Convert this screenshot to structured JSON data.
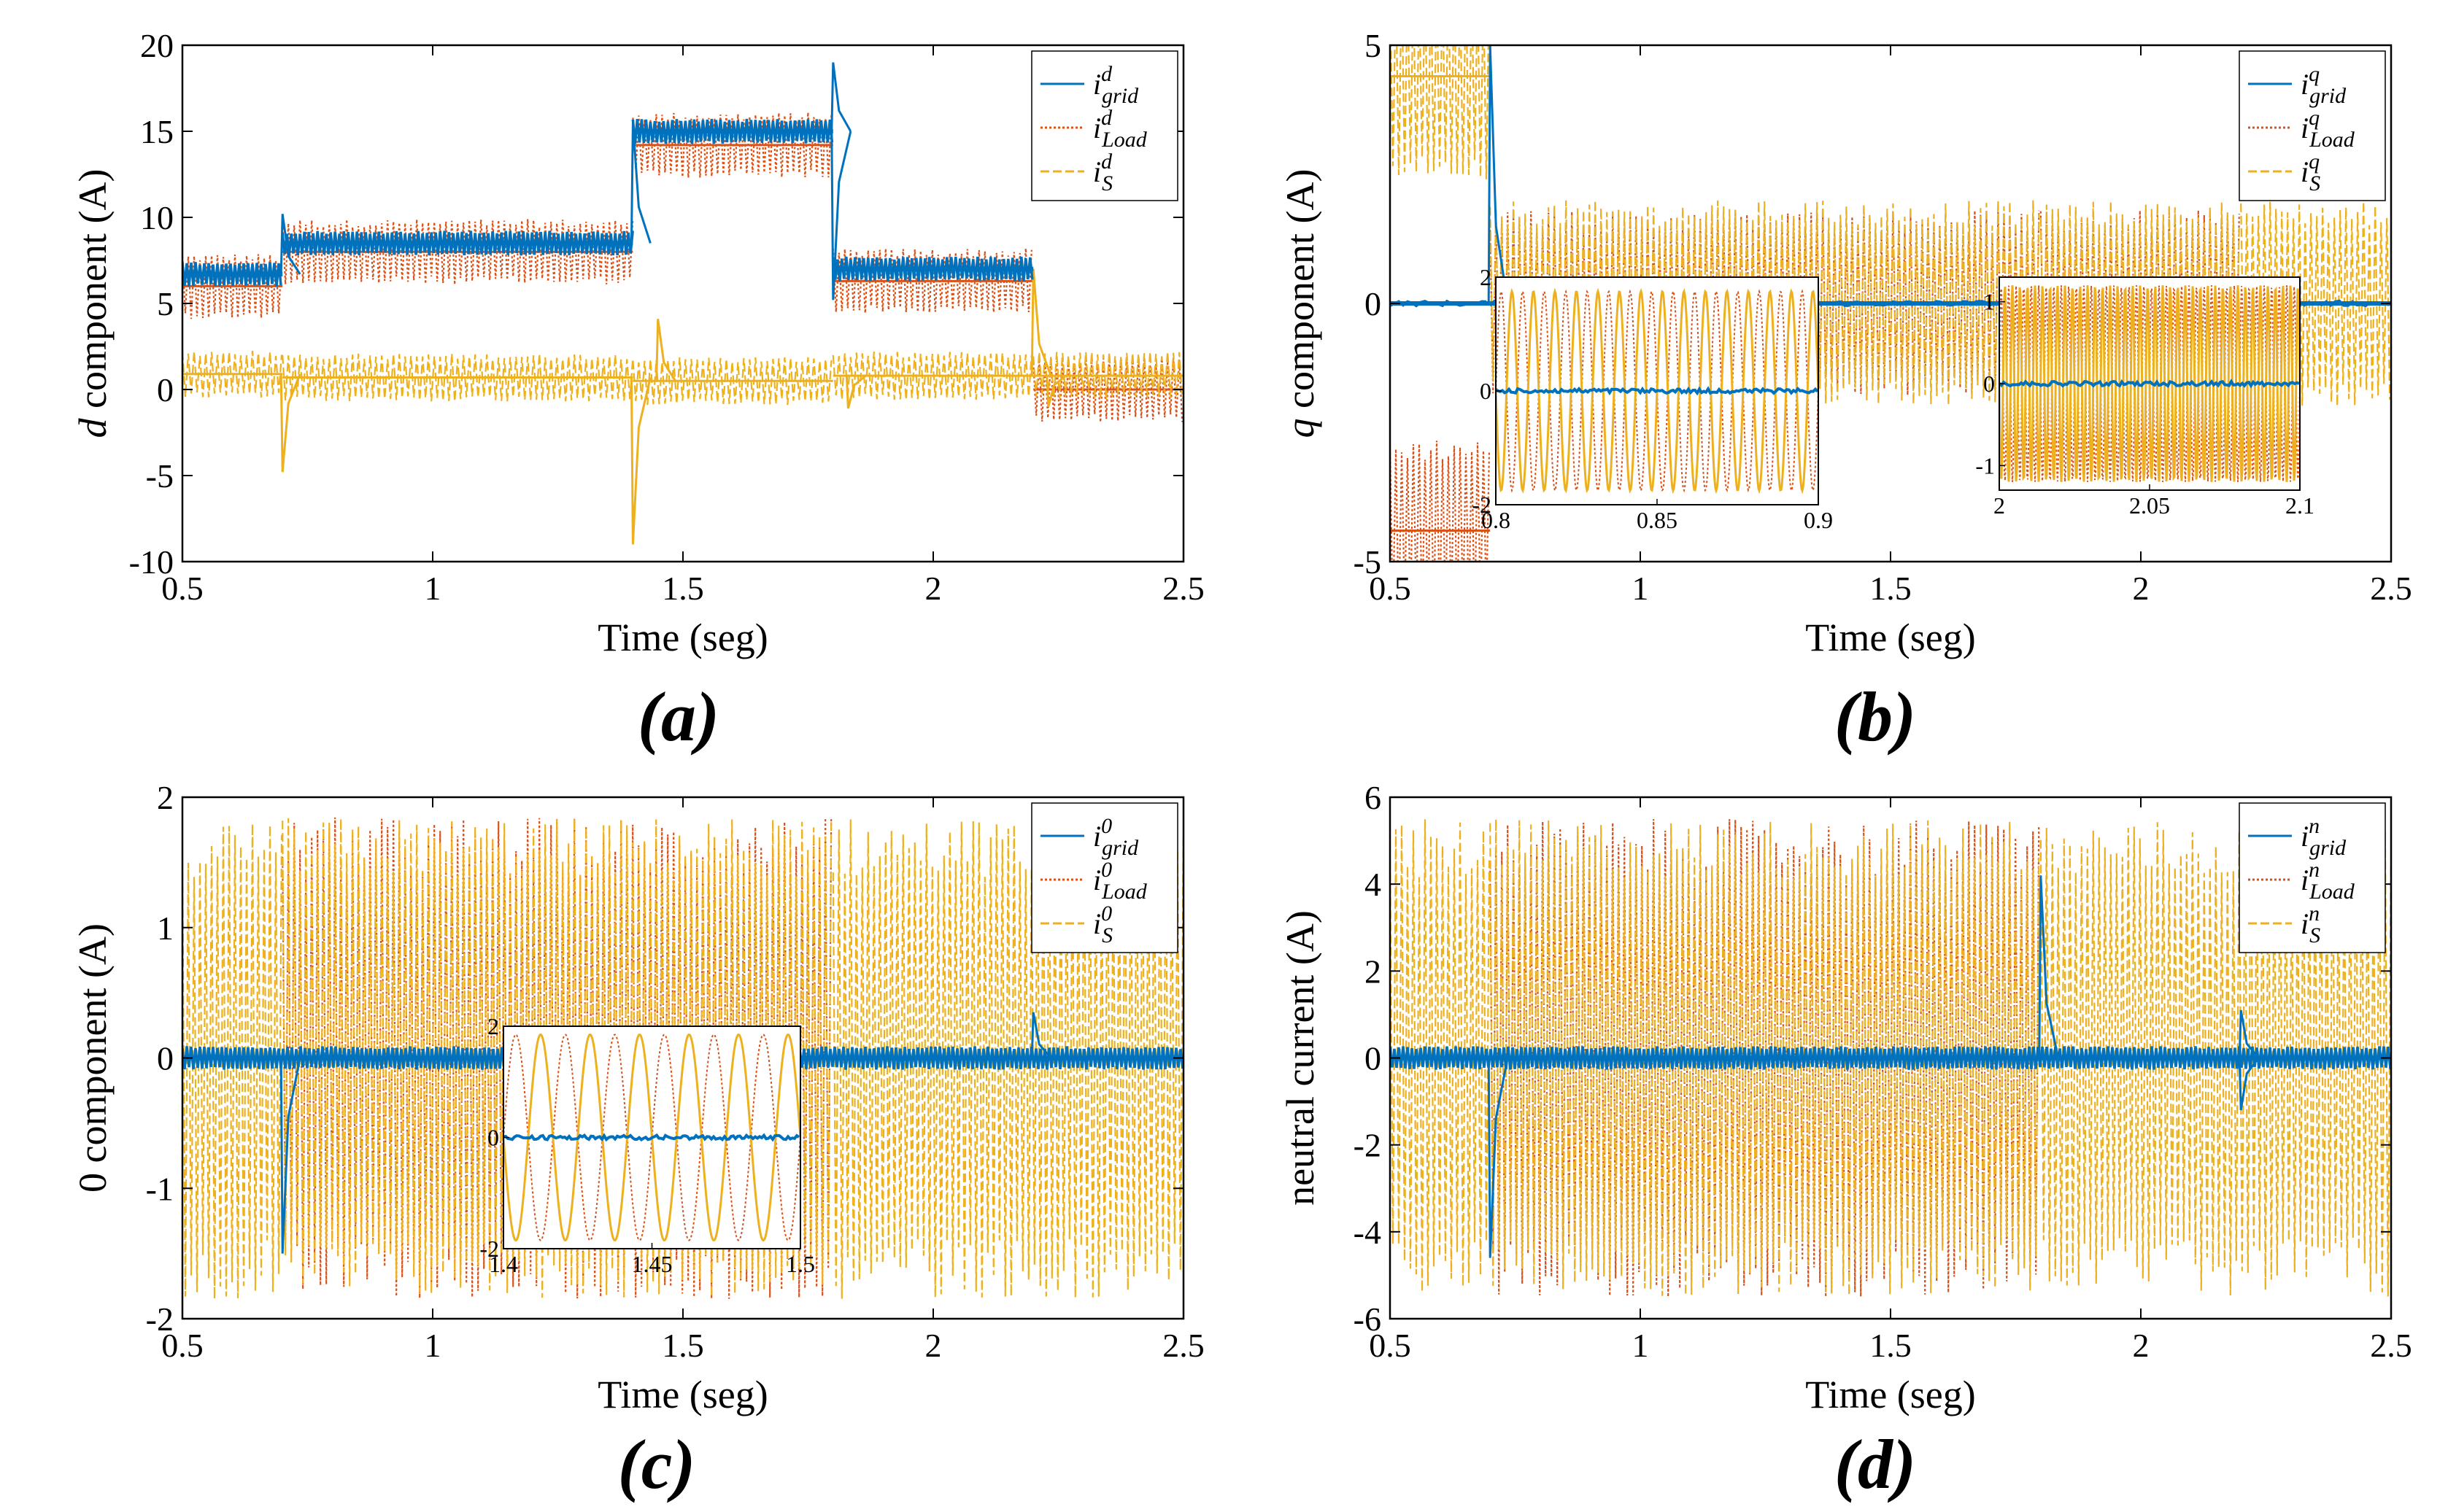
{
  "colors": {
    "grid": "#0072BD",
    "load": "#D95319",
    "source": "#EDB120"
  },
  "chart_data": [
    {
      "type": "line",
      "panel_label": "(a)",
      "xlabel": "Time (seg)",
      "ylabel_italic": "d",
      "ylabel_rest": " component (A)",
      "xlim": [
        0.5,
        2.5
      ],
      "ylim": [
        -10,
        20
      ],
      "xticks": [
        0.5,
        1,
        1.5,
        2,
        2.5
      ],
      "xtick_labels": [
        "0.5",
        "1",
        "1.5",
        "2",
        "2.5"
      ],
      "yticks": [
        -10,
        -5,
        0,
        5,
        10,
        15,
        20
      ],
      "ytick_labels": [
        "-10",
        "-5",
        "0",
        "5",
        "10",
        "15",
        "20"
      ],
      "legend": {
        "position": "top-right",
        "base": "i",
        "sup": "d",
        "subs": [
          "grid",
          "Load",
          "S"
        ]
      },
      "events": [
        0.7,
        1.4,
        1.8,
        2.2
      ],
      "series": [
        {
          "key": "grid",
          "style": "solid",
          "segments": [
            [
              0.5,
              0.7,
              6.7
            ],
            [
              0.7,
              1.4,
              8.5
            ],
            [
              1.4,
              1.8,
              15.0
            ],
            [
              1.8,
              2.2,
              7.0
            ]
          ],
          "ripple": 0.8,
          "spikes": [
            [
              0.7,
              10.2
            ],
            [
              1.4,
              15.5
            ],
            [
              1.8,
              19.0
            ],
            [
              1.8,
              5.2
            ]
          ]
        },
        {
          "key": "load",
          "style": "dotted",
          "segments": [
            [
              0.5,
              0.7,
              6.0
            ],
            [
              0.7,
              1.4,
              8.0
            ],
            [
              1.4,
              1.8,
              14.2
            ],
            [
              1.8,
              2.2,
              6.3
            ],
            [
              2.2,
              2.5,
              0
            ]
          ],
          "ripple": 1.9
        },
        {
          "key": "source",
          "style": "dashed",
          "segments": [
            [
              0.5,
              0.7,
              0.9
            ],
            [
              0.7,
              1.4,
              0.7
            ],
            [
              1.4,
              1.8,
              0.5
            ],
            [
              1.8,
              2.2,
              0.8
            ],
            [
              2.2,
              2.5,
              0.8
            ]
          ],
          "ripple": 1.4,
          "spikes": [
            [
              0.7,
              -4.8
            ],
            [
              1.4,
              -9.0
            ],
            [
              1.45,
              4.1
            ],
            [
              1.83,
              -1.1
            ],
            [
              2.2,
              7.0
            ],
            [
              2.23,
              -1.0
            ]
          ]
        }
      ]
    },
    {
      "type": "line",
      "panel_label": "(b)",
      "xlabel": "Time (seg)",
      "ylabel_italic": "q",
      "ylabel_rest": " component (A)",
      "xlim": [
        0.5,
        2.5
      ],
      "ylim": [
        -5,
        5
      ],
      "xticks": [
        0.5,
        1,
        1.5,
        2,
        2.5
      ],
      "xtick_labels": [
        "0.5",
        "1",
        "1.5",
        "2",
        "2.5"
      ],
      "yticks": [
        -5,
        0,
        5
      ],
      "ytick_labels": [
        "-5",
        "0",
        "5"
      ],
      "legend": {
        "position": "top-right",
        "base": "i",
        "sup": "q",
        "subs": [
          "grid",
          "Load",
          "S"
        ]
      },
      "events": [
        0.7,
        1.4,
        1.8,
        2.2
      ],
      "series": [
        {
          "key": "grid",
          "style": "solid",
          "segments": [
            [
              0.5,
              0.7,
              0
            ],
            [
              0.7,
              2.5,
              0
            ]
          ],
          "ripple": 0.05,
          "spikes": [
            [
              0.7,
              5.0
            ]
          ]
        },
        {
          "key": "load",
          "style": "dotted",
          "segments": [
            [
              0.5,
              0.7,
              -4.4
            ],
            [
              0.7,
              1.4,
              0
            ],
            [
              1.4,
              1.8,
              0
            ],
            [
              1.8,
              2.2,
              0
            ]
          ],
          "ripple": 1.8
        },
        {
          "key": "source",
          "style": "dashed",
          "segments": [
            [
              0.5,
              0.7,
              4.4
            ],
            [
              0.7,
              1.4,
              0
            ],
            [
              1.4,
              1.8,
              0
            ],
            [
              1.8,
              2.2,
              0
            ],
            [
              2.2,
              2.5,
              0
            ]
          ],
          "ripple": 2.0
        }
      ],
      "insets": [
        {
          "xlim": [
            0.8,
            0.9
          ],
          "ylim": [
            -2,
            2
          ],
          "xticks": [
            0.8,
            0.85,
            0.9
          ],
          "xtick_labels": [
            "0.8",
            "0.85",
            "0.9"
          ],
          "yticks": [
            -2,
            0,
            2
          ],
          "ytick_labels": [
            "-2",
            "0",
            "2"
          ],
          "amplitude": 1.75,
          "cycles": 15
        },
        {
          "xlim": [
            2,
            2.1
          ],
          "ylim": [
            -1.3,
            1.3
          ],
          "xticks": [
            2,
            2.05,
            2.1
          ],
          "xtick_labels": [
            "2",
            "2.05",
            "2.1"
          ],
          "yticks": [
            -1,
            0,
            1
          ],
          "ytick_labels": [
            "-1",
            "0",
            "1"
          ],
          "amplitude": 1.2,
          "cycles": 40
        }
      ]
    },
    {
      "type": "line",
      "panel_label": "(c)",
      "xlabel": "Time (seg)",
      "ylabel_italic": "",
      "ylabel_rest": "0 component (A)",
      "xlim": [
        0.5,
        2.5
      ],
      "ylim": [
        -2,
        2
      ],
      "xticks": [
        0.5,
        1,
        1.5,
        2,
        2.5
      ],
      "xtick_labels": [
        "0.5",
        "1",
        "1.5",
        "2",
        "2.5"
      ],
      "yticks": [
        -2,
        -1,
        0,
        1,
        2
      ],
      "ytick_labels": [
        "-2",
        "-1",
        "0",
        "1",
        "2"
      ],
      "legend": {
        "position": "top-right",
        "base": "i",
        "sup": "0",
        "subs": [
          "grid",
          "Load",
          "S"
        ]
      },
      "events": [
        0.7,
        1.8,
        2.2
      ],
      "series": [
        {
          "key": "grid",
          "style": "solid",
          "segments": [
            [
              0.5,
              2.5,
              0
            ]
          ],
          "ripple": 0.1,
          "spikes": [
            [
              0.7,
              -1.5
            ],
            [
              2.2,
              0.35
            ]
          ]
        },
        {
          "key": "load",
          "style": "dotted",
          "segments": [
            [
              0.7,
              1.8,
              0
            ]
          ],
          "ripple": 1.85
        },
        {
          "key": "source",
          "style": "dashed",
          "segments": [
            [
              0.5,
              0.7,
              0
            ],
            [
              0.7,
              1.8,
              0
            ],
            [
              1.8,
              2.5,
              0
            ]
          ],
          "ripple": 1.85
        }
      ],
      "insets": [
        {
          "xlim": [
            1.4,
            1.5
          ],
          "ylim": [
            -2,
            2
          ],
          "xticks": [
            1.4,
            1.45,
            1.5
          ],
          "xtick_labels": [
            "1.4",
            "1.45",
            "1.5"
          ],
          "yticks": [
            -2,
            0,
            2
          ],
          "ytick_labels": [
            "-2",
            "0",
            "2"
          ],
          "amplitude": 1.85,
          "cycles": 6
        }
      ]
    },
    {
      "type": "line",
      "panel_label": "(d)",
      "xlabel": "Time (seg)",
      "ylabel_italic": "",
      "ylabel_rest": "neutral current (A)",
      "xlim": [
        0.5,
        2.5
      ],
      "ylim": [
        -6,
        6
      ],
      "xticks": [
        0.5,
        1,
        1.5,
        2,
        2.5
      ],
      "xtick_labels": [
        "0.5",
        "1",
        "1.5",
        "2",
        "2.5"
      ],
      "yticks": [
        -6,
        -4,
        -2,
        0,
        2,
        4,
        6
      ],
      "ytick_labels": [
        "-6",
        "-4",
        "-2",
        "0",
        "2",
        "4",
        "6"
      ],
      "legend": {
        "position": "top-right",
        "base": "i",
        "sup": "n",
        "subs": [
          "grid",
          "Load",
          "S"
        ]
      },
      "events": [
        0.7,
        1.8,
        2.2
      ],
      "series": [
        {
          "key": "grid",
          "style": "solid",
          "segments": [
            [
              0.5,
              2.5,
              0
            ]
          ],
          "ripple": 0.3,
          "spikes": [
            [
              0.7,
              -4.6
            ],
            [
              1.8,
              4.2
            ],
            [
              2.2,
              1.1
            ],
            [
              2.2,
              -1.2
            ]
          ]
        },
        {
          "key": "load",
          "style": "dotted",
          "segments": [
            [
              0.7,
              1.8,
              0
            ]
          ],
          "ripple": 5.5
        },
        {
          "key": "source",
          "style": "dashed",
          "segments": [
            [
              0.5,
              0.7,
              0
            ],
            [
              0.7,
              1.8,
              0
            ],
            [
              1.8,
              2.5,
              0
            ]
          ],
          "ripple": 5.5
        }
      ]
    }
  ]
}
